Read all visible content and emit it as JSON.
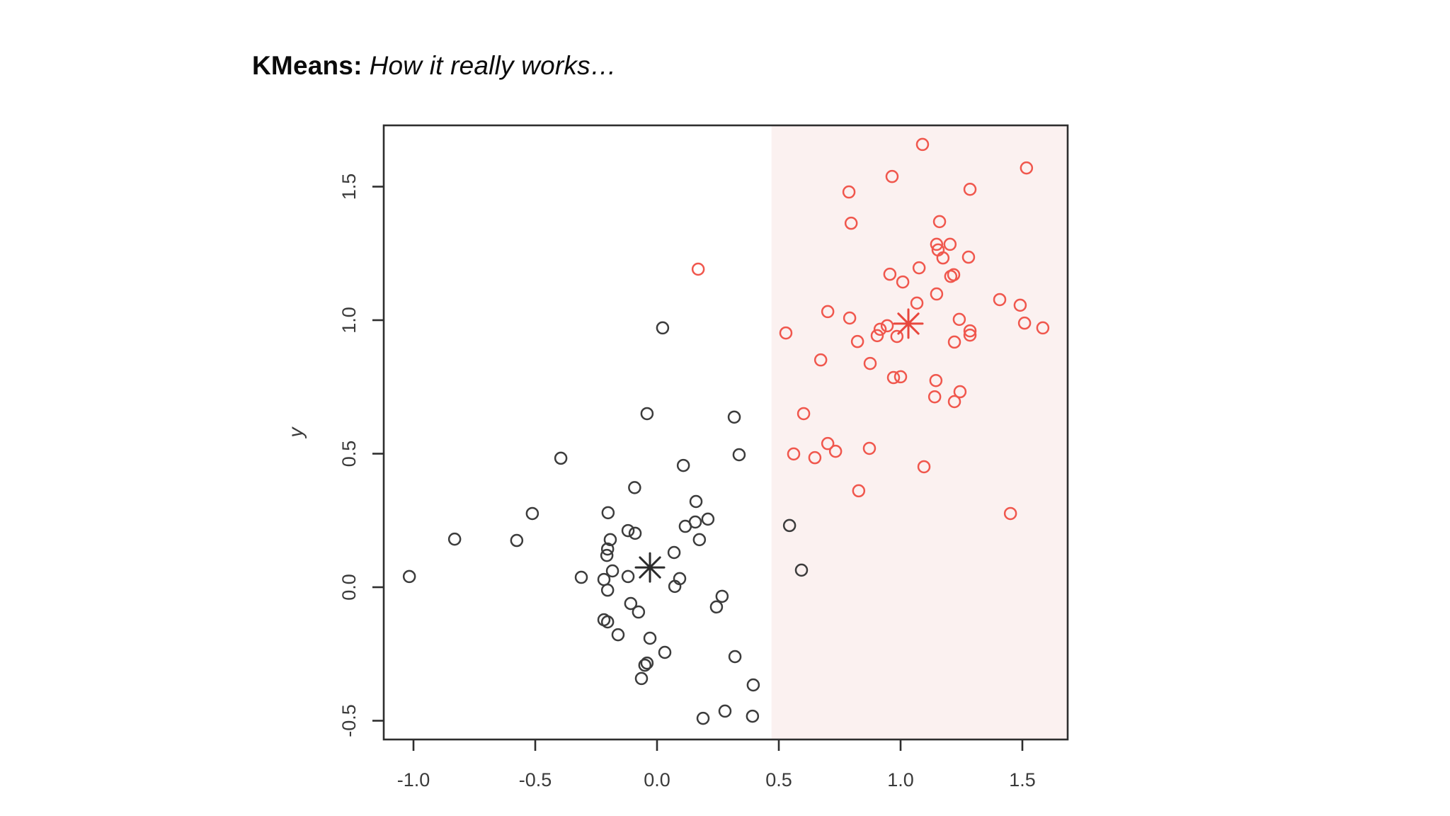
{
  "header": {
    "title_bold": "KMeans:",
    "title_italic": "How it really works…"
  },
  "chart_data": {
    "type": "scatter",
    "title": "",
    "xlabel": "",
    "ylabel": "y",
    "xlim": [
      -1.12,
      1.69
    ],
    "ylim": [
      -0.57,
      1.73
    ],
    "x_ticks": [
      -1.0,
      -0.5,
      0.0,
      0.5,
      1.0,
      1.5
    ],
    "y_ticks": [
      -0.5,
      0.0,
      0.5,
      1.0,
      1.5
    ],
    "grid": false,
    "legend": "none",
    "region_split_x": 0.47,
    "colors": {
      "cluster1": "#3c3c3c",
      "cluster2": "#f0574d",
      "centroid1": "#2b2b2b",
      "centroid2": "#e8473d",
      "region_tint": "#fbf1f0",
      "axis": "#2e2e2e",
      "tick_label": "#3a3a3a"
    },
    "series": [
      {
        "name": "cluster-1-black",
        "marker": "open-circle",
        "points": [
          [
            -0.092,
            0.373
          ],
          [
            0.023,
            0.971
          ],
          [
            -0.041,
            0.65
          ],
          [
            0.317,
            0.637
          ],
          [
            0.337,
            0.496
          ],
          [
            0.108,
            0.456
          ],
          [
            -0.395,
            0.483
          ],
          [
            -0.512,
            0.276
          ],
          [
            -0.576,
            0.175
          ],
          [
            -0.831,
            0.18
          ],
          [
            -1.017,
            0.04
          ],
          [
            -0.201,
            0.279
          ],
          [
            0.16,
            0.321
          ],
          [
            0.157,
            0.244
          ],
          [
            0.116,
            0.228
          ],
          [
            0.209,
            0.255
          ],
          [
            -0.119,
            0.212
          ],
          [
            -0.09,
            0.202
          ],
          [
            -0.192,
            0.178
          ],
          [
            -0.203,
            0.143
          ],
          [
            -0.206,
            0.119
          ],
          [
            0.174,
            0.178
          ],
          [
            0.07,
            0.13
          ],
          [
            -0.183,
            0.061
          ],
          [
            -0.311,
            0.037
          ],
          [
            -0.119,
            0.04
          ],
          [
            -0.218,
            0.029
          ],
          [
            0.093,
            0.032
          ],
          [
            0.073,
            0.003
          ],
          [
            -0.203,
            -0.011
          ],
          [
            0.267,
            -0.034
          ],
          [
            0.244,
            -0.074
          ],
          [
            -0.108,
            -0.061
          ],
          [
            -0.076,
            -0.093
          ],
          [
            -0.203,
            -0.13
          ],
          [
            -0.218,
            -0.122
          ],
          [
            -0.16,
            -0.178
          ],
          [
            -0.029,
            -0.191
          ],
          [
            0.032,
            -0.244
          ],
          [
            -0.041,
            -0.284
          ],
          [
            -0.05,
            -0.292
          ],
          [
            0.32,
            -0.26
          ],
          [
            -0.064,
            -0.342
          ],
          [
            0.395,
            -0.366
          ],
          [
            0.189,
            -0.491
          ],
          [
            0.279,
            -0.464
          ],
          [
            0.392,
            -0.483
          ],
          [
            0.544,
            0.231
          ],
          [
            0.593,
            0.064
          ]
        ]
      },
      {
        "name": "cluster-2-red",
        "marker": "open-circle",
        "points": [
          [
            1.09,
            1.658
          ],
          [
            1.517,
            1.57
          ],
          [
            0.965,
            1.538
          ],
          [
            1.285,
            1.49
          ],
          [
            0.788,
            1.48
          ],
          [
            0.797,
            1.363
          ],
          [
            1.16,
            1.369
          ],
          [
            1.148,
            1.284
          ],
          [
            1.203,
            1.284
          ],
          [
            1.154,
            1.263
          ],
          [
            1.174,
            1.233
          ],
          [
            1.279,
            1.236
          ],
          [
            1.076,
            1.196
          ],
          [
            0.956,
            1.172
          ],
          [
            1.009,
            1.143
          ],
          [
            1.206,
            1.164
          ],
          [
            1.218,
            1.17
          ],
          [
            1.148,
            1.098
          ],
          [
            1.067,
            1.064
          ],
          [
            1.407,
            1.077
          ],
          [
            1.491,
            1.056
          ],
          [
            0.701,
            1.032
          ],
          [
            0.791,
            1.008
          ],
          [
            1.241,
            1.003
          ],
          [
            1.509,
            0.989
          ],
          [
            1.584,
            0.971
          ],
          [
            0.916,
            0.966
          ],
          [
            0.945,
            0.979
          ],
          [
            1.285,
            0.96
          ],
          [
            0.823,
            0.92
          ],
          [
            0.904,
            0.942
          ],
          [
            0.985,
            0.939
          ],
          [
            1.221,
            0.918
          ],
          [
            1.285,
            0.944
          ],
          [
            0.672,
            0.851
          ],
          [
            0.875,
            0.838
          ],
          [
            0.971,
            0.785
          ],
          [
            1.0,
            0.788
          ],
          [
            1.145,
            0.774
          ],
          [
            1.14,
            0.713
          ],
          [
            1.244,
            0.732
          ],
          [
            1.221,
            0.695
          ],
          [
            0.701,
            0.538
          ],
          [
            0.733,
            0.509
          ],
          [
            0.872,
            0.52
          ],
          [
            0.602,
            0.65
          ],
          [
            0.561,
            0.499
          ],
          [
            0.648,
            0.485
          ],
          [
            1.096,
            0.451
          ],
          [
            0.828,
            0.361
          ],
          [
            1.451,
            0.276
          ],
          [
            0.169,
            1.191
          ],
          [
            0.529,
            0.952
          ]
        ]
      }
    ],
    "centroids": [
      {
        "name": "centroid-1-black",
        "marker": "asterisk",
        "x": -0.029,
        "y": 0.074
      },
      {
        "name": "centroid-2-red",
        "marker": "asterisk",
        "x": 1.032,
        "y": 0.987
      }
    ]
  }
}
